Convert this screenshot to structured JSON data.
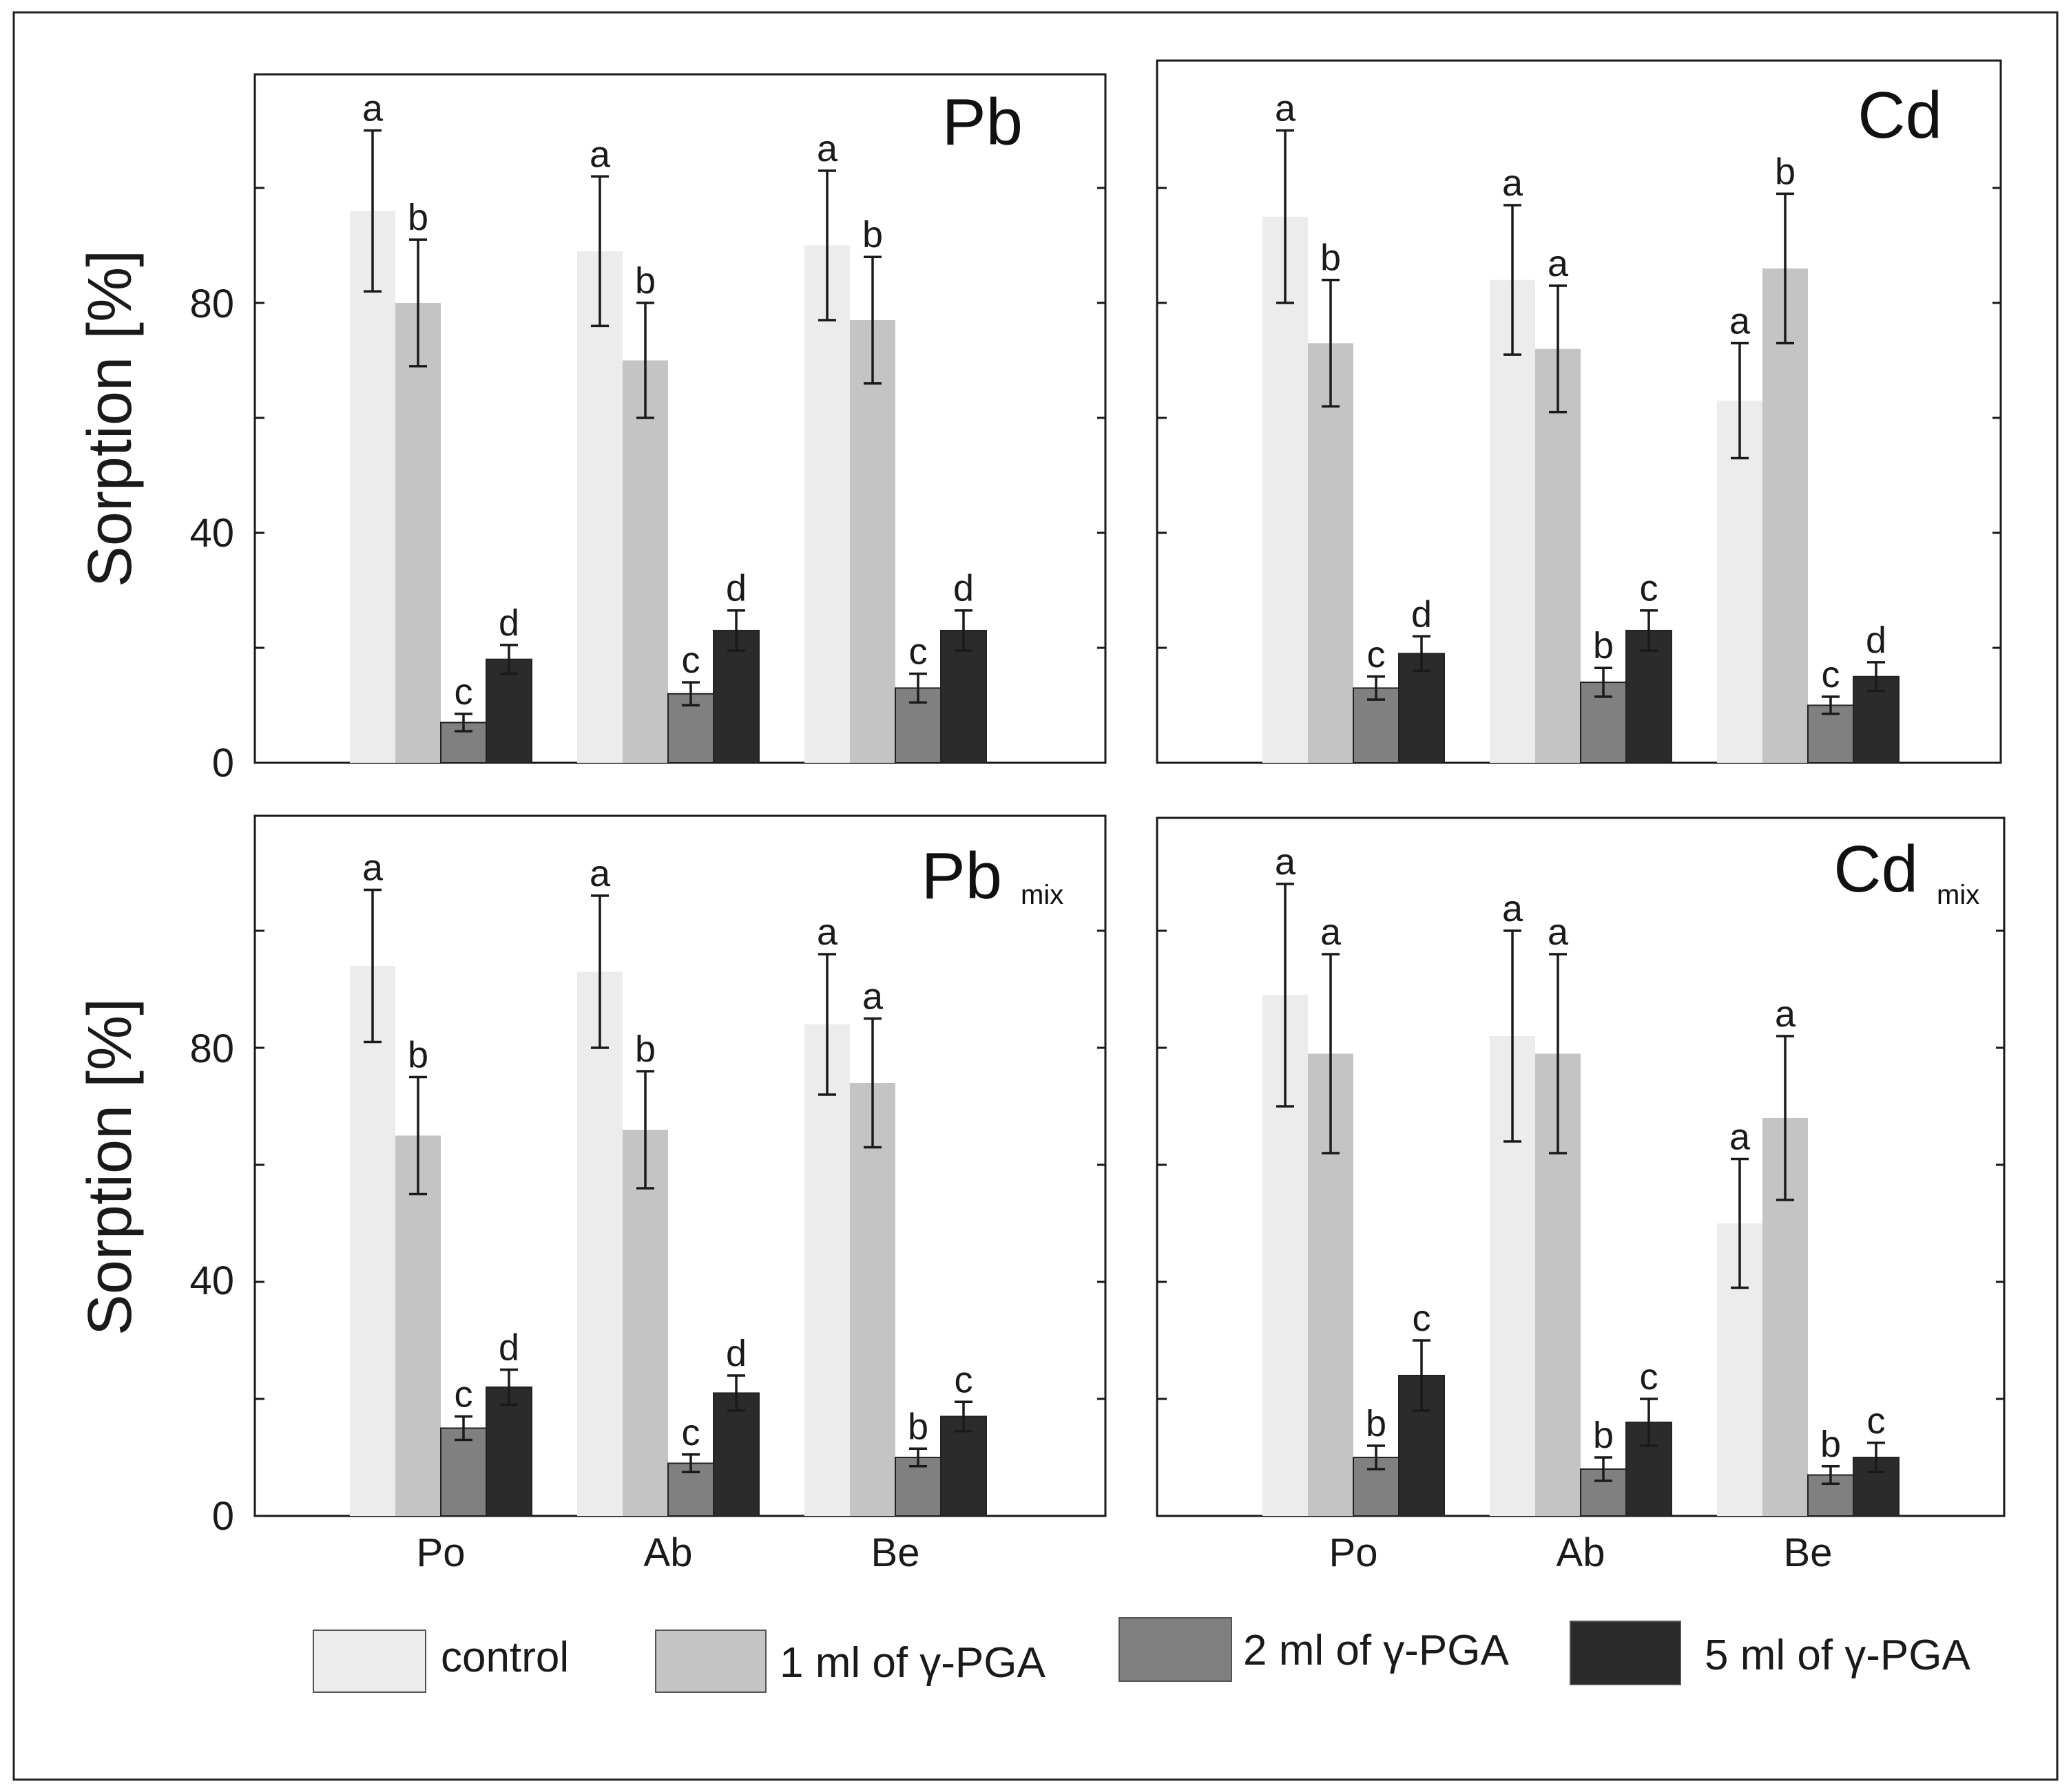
{
  "chart_data": [
    {
      "type": "bar",
      "title": "Pb",
      "subtitle": "",
      "ylabel": "Sorption [%]",
      "xlabel": "",
      "ylim": [
        0,
        120
      ],
      "yticks": [
        "0",
        "40",
        "80"
      ],
      "categories": [
        "Po",
        "Ab",
        "Be"
      ],
      "series": [
        {
          "name": "control",
          "color": "#ececec",
          "values": [
            96,
            89,
            90
          ],
          "errors": [
            14,
            13,
            13
          ],
          "letters": [
            "a",
            "a",
            "a"
          ]
        },
        {
          "name": "1 ml of γ-PGA",
          "color": "#c4c4c4",
          "values": [
            80,
            70,
            77
          ],
          "errors": [
            11,
            10,
            11
          ],
          "letters": [
            "b",
            "b",
            "b"
          ]
        },
        {
          "name": "2 ml of γ-PGA",
          "color": "#808080",
          "values": [
            7,
            12,
            13
          ],
          "errors": [
            1.5,
            2,
            2.5
          ],
          "letters": [
            "c",
            "c",
            "c"
          ]
        },
        {
          "name": "5 ml of γ-PGA",
          "color": "#2b2b2b",
          "values": [
            18,
            23,
            23
          ],
          "errors": [
            2.5,
            3.5,
            3.5
          ],
          "letters": [
            "d",
            "d",
            "d"
          ]
        }
      ]
    },
    {
      "type": "bar",
      "title": "Cd",
      "subtitle": "",
      "ylabel": "",
      "xlabel": "",
      "ylim": [
        0,
        120
      ],
      "yticks": [
        "",
        "",
        ""
      ],
      "categories": [
        "Po",
        "Ab",
        "Be"
      ],
      "series": [
        {
          "name": "control",
          "color": "#ececec",
          "values": [
            95,
            84,
            63
          ],
          "errors": [
            15,
            13,
            10
          ],
          "letters": [
            "a",
            "a",
            "a"
          ]
        },
        {
          "name": "1 ml of γ-PGA",
          "color": "#c4c4c4",
          "values": [
            73,
            72,
            86
          ],
          "errors": [
            11,
            11,
            13
          ],
          "letters": [
            "b",
            "a",
            "b"
          ]
        },
        {
          "name": "2 ml of γ-PGA",
          "color": "#808080",
          "values": [
            13,
            14,
            10
          ],
          "errors": [
            2,
            2.5,
            1.5
          ],
          "letters": [
            "c",
            "b",
            "c"
          ]
        },
        {
          "name": "5 ml of γ-PGA",
          "color": "#2b2b2b",
          "values": [
            19,
            23,
            15
          ],
          "errors": [
            3,
            3.5,
            2.5
          ],
          "letters": [
            "d",
            "c",
            "d"
          ]
        }
      ]
    },
    {
      "type": "bar",
      "title": "Pb",
      "subtitle": "mix",
      "ylabel": "Sorption [%]",
      "xlabel": "",
      "ylim": [
        0,
        120
      ],
      "yticks": [
        "0",
        "40",
        "80"
      ],
      "categories": [
        "Po",
        "Ab",
        "Be"
      ],
      "series": [
        {
          "name": "control",
          "color": "#ececec",
          "values": [
            94,
            93,
            84
          ],
          "errors": [
            13,
            13,
            12
          ],
          "letters": [
            "a",
            "a",
            "a"
          ]
        },
        {
          "name": "1 ml of γ-PGA",
          "color": "#c4c4c4",
          "values": [
            65,
            66,
            74
          ],
          "errors": [
            10,
            10,
            11
          ],
          "letters": [
            "b",
            "b",
            "a"
          ]
        },
        {
          "name": "2 ml of γ-PGA",
          "color": "#808080",
          "values": [
            15,
            9,
            10
          ],
          "errors": [
            2,
            1.5,
            1.5
          ],
          "letters": [
            "c",
            "c",
            "b"
          ]
        },
        {
          "name": "5 ml of γ-PGA",
          "color": "#2b2b2b",
          "values": [
            22,
            21,
            17
          ],
          "errors": [
            3,
            3,
            2.5
          ],
          "letters": [
            "d",
            "d",
            "c"
          ]
        }
      ]
    },
    {
      "type": "bar",
      "title": "Cd",
      "subtitle": "mix",
      "ylabel": "",
      "xlabel": "",
      "ylim": [
        0,
        120
      ],
      "yticks": [
        "",
        "",
        ""
      ],
      "categories": [
        "Po",
        "Ab",
        "Be"
      ],
      "series": [
        {
          "name": "control",
          "color": "#ececec",
          "values": [
            89,
            82,
            50
          ],
          "errors": [
            19,
            18,
            11
          ],
          "letters": [
            "a",
            "a",
            "a"
          ]
        },
        {
          "name": "1 ml of γ-PGA",
          "color": "#c4c4c4",
          "values": [
            79,
            79,
            68
          ],
          "errors": [
            17,
            17,
            14
          ],
          "letters": [
            "a",
            "a",
            "a"
          ]
        },
        {
          "name": "2 ml of γ-PGA",
          "color": "#808080",
          "values": [
            10,
            8,
            7
          ],
          "errors": [
            2,
            2,
            1.5
          ],
          "letters": [
            "b",
            "b",
            "b"
          ]
        },
        {
          "name": "5 ml of γ-PGA",
          "color": "#2b2b2b",
          "values": [
            24,
            16,
            10
          ],
          "errors": [
            6,
            4,
            2.5
          ],
          "letters": [
            "c",
            "c",
            "c"
          ]
        }
      ]
    }
  ],
  "legend": [
    {
      "label": "control",
      "color": "#ececec"
    },
    {
      "label": "1 ml of γ-PGA",
      "color": "#c4c4c4"
    },
    {
      "label": "2 ml of γ-PGA",
      "color": "#808080"
    },
    {
      "label": "5 ml of γ-PGA",
      "color": "#2b2b2b"
    }
  ]
}
